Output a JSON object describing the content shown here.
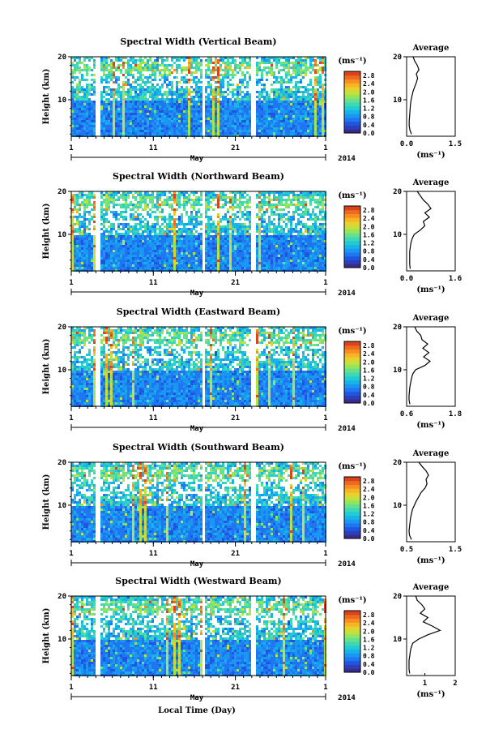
{
  "colors": {
    "colormap": [
      "#3a2a8c",
      "#2b3fb8",
      "#1f55e0",
      "#1f76f0",
      "#1a97f2",
      "#18b4e8",
      "#22cbd4",
      "#3ed9b4",
      "#66e08c",
      "#95e45e",
      "#c4e03c",
      "#e6d22e",
      "#f6b426",
      "#f78e20",
      "#ee6a1e",
      "#d9441e"
    ],
    "line": "#000000"
  },
  "chart_data": [
    {
      "type": "heatmap",
      "title": "Spectral Width (Vertical Beam)",
      "ylabel": "Height (km)",
      "ylim": [
        1.5,
        20
      ],
      "yticks": [
        "10",
        "20"
      ],
      "xticks": [
        "1",
        "11",
        "21",
        "1"
      ],
      "month_label": "May",
      "year_label": "2014",
      "colorbar": {
        "unit": "(ms⁻¹)",
        "ticks": [
          "0.0",
          "0.4",
          "0.8",
          "1.2",
          "1.6",
          "2.0",
          "2.4",
          "2.8"
        ],
        "range": [
          0,
          3.0
        ]
      },
      "average": {
        "title": "Average",
        "xlabel": "(ms⁻¹)",
        "xticks": [
          "0.0",
          "1.5"
        ],
        "xlim": [
          0,
          1.5
        ],
        "yticks": [
          "10",
          "20"
        ],
        "height_km": [
          2,
          3,
          4,
          5,
          6,
          7,
          8,
          9,
          10,
          11,
          12,
          13,
          14,
          15,
          16,
          17,
          18,
          19,
          20
        ],
        "values": [
          0.15,
          0.1,
          0.08,
          0.08,
          0.09,
          0.1,
          0.11,
          0.12,
          0.14,
          0.17,
          0.2,
          0.25,
          0.3,
          0.34,
          0.3,
          0.38,
          0.33,
          0.25,
          0.2
        ]
      }
    },
    {
      "type": "heatmap",
      "title": "Spectral Width (Northward Beam)",
      "ylabel": "Height (km)",
      "ylim": [
        1.5,
        20
      ],
      "yticks": [
        "10",
        "20"
      ],
      "xticks": [
        "1",
        "11",
        "21",
        "1"
      ],
      "month_label": "May",
      "year_label": "2014",
      "colorbar": {
        "unit": "(ms⁻¹)",
        "ticks": [
          "0.0",
          "0.4",
          "0.8",
          "1.2",
          "1.6",
          "2.0",
          "2.4",
          "2.8"
        ],
        "range": [
          0,
          3.0
        ]
      },
      "average": {
        "title": "Average",
        "xlabel": "(ms⁻¹)",
        "xticks": [
          "0.0",
          "1.6"
        ],
        "xlim": [
          0,
          1.6
        ],
        "yticks": [
          "10",
          "20"
        ],
        "height_km": [
          2,
          3,
          4,
          5,
          6,
          7,
          8,
          9,
          10,
          11,
          12,
          13,
          14,
          15,
          16,
          17,
          18,
          19,
          20
        ],
        "values": [
          0.12,
          0.1,
          0.1,
          0.1,
          0.1,
          0.12,
          0.14,
          0.18,
          0.25,
          0.45,
          0.6,
          0.55,
          0.75,
          0.6,
          0.8,
          0.7,
          0.55,
          0.45,
          0.35
        ]
      }
    },
    {
      "type": "heatmap",
      "title": "Spectral Width (Eastward Beam)",
      "ylabel": "Height (km)",
      "ylim": [
        1.5,
        20
      ],
      "yticks": [
        "10",
        "20"
      ],
      "xticks": [
        "1",
        "11",
        "21",
        "1"
      ],
      "month_label": "May",
      "year_label": "2014",
      "colorbar": {
        "unit": "(ms⁻¹)",
        "ticks": [
          "0.0",
          "0.4",
          "0.8",
          "1.2",
          "1.6",
          "2.0",
          "2.4",
          "2.8"
        ],
        "range": [
          0,
          3.0
        ]
      },
      "average": {
        "title": "Average",
        "xlabel": "(ms⁻¹)",
        "xticks": [
          "0.6",
          "1.8"
        ],
        "xlim": [
          0.6,
          1.8
        ],
        "yticks": [
          "10",
          "20"
        ],
        "height_km": [
          2,
          3,
          4,
          5,
          6,
          7,
          8,
          9,
          10,
          11,
          12,
          13,
          14,
          15,
          16,
          17,
          18,
          19,
          20
        ],
        "values": [
          0.68,
          0.66,
          0.66,
          0.67,
          0.68,
          0.7,
          0.72,
          0.75,
          0.82,
          1.05,
          1.18,
          1.02,
          1.15,
          1.0,
          1.12,
          0.98,
          0.95,
          0.85,
          0.8
        ]
      }
    },
    {
      "type": "heatmap",
      "title": "Spectral Width (Southward Beam)",
      "ylabel": "Height (km)",
      "ylim": [
        1.5,
        20
      ],
      "yticks": [
        "10",
        "20"
      ],
      "xticks": [
        "1",
        "11",
        "21",
        "1"
      ],
      "month_label": "May",
      "year_label": "2014",
      "colorbar": {
        "unit": "(ms⁻¹)",
        "ticks": [
          "0.0",
          "0.4",
          "0.8",
          "1.2",
          "1.6",
          "2.0",
          "2.4",
          "2.8"
        ],
        "range": [
          0,
          3.0
        ]
      },
      "average": {
        "title": "Average",
        "xlabel": "(ms⁻¹)",
        "xticks": [
          "0.5",
          "1.5"
        ],
        "xlim": [
          0.5,
          1.5
        ],
        "yticks": [
          "10",
          "20"
        ],
        "height_km": [
          2,
          3,
          4,
          5,
          6,
          7,
          8,
          9,
          10,
          11,
          12,
          13,
          14,
          15,
          16,
          17,
          18,
          19,
          20
        ],
        "values": [
          0.6,
          0.56,
          0.55,
          0.56,
          0.57,
          0.58,
          0.6,
          0.62,
          0.66,
          0.7,
          0.75,
          0.8,
          0.88,
          0.92,
          0.9,
          0.95,
          0.9,
          0.82,
          0.75
        ]
      }
    },
    {
      "type": "heatmap",
      "title": "Spectral Width (Westward Beam)",
      "ylabel": "Height (km)",
      "ylim": [
        1.5,
        20
      ],
      "yticks": [
        "10",
        "20"
      ],
      "xticks": [
        "1",
        "11",
        "21",
        "1"
      ],
      "month_label": "May",
      "year_label": "2014",
      "x_axis_title": "Local Time (Day)",
      "colorbar": {
        "unit": "(ms⁻¹)",
        "ticks": [
          "0.0",
          "0.4",
          "0.8",
          "1.2",
          "1.6",
          "2.0",
          "2.4",
          "2.8"
        ],
        "range": [
          0,
          3.0
        ]
      },
      "average": {
        "title": "Average",
        "xlabel": "(ms⁻¹)",
        "xticks": [
          "1",
          "2"
        ],
        "xlim": [
          0.4,
          2.0
        ],
        "yticks": [
          "10",
          "20"
        ],
        "height_km": [
          2,
          3,
          4,
          5,
          6,
          7,
          8,
          9,
          10,
          11,
          12,
          13,
          14,
          15,
          16,
          17,
          18,
          19,
          20
        ],
        "values": [
          0.5,
          0.48,
          0.48,
          0.48,
          0.5,
          0.52,
          0.55,
          0.6,
          0.8,
          1.1,
          1.5,
          1.25,
          0.95,
          1.1,
          0.85,
          1.0,
          0.9,
          0.75,
          0.7
        ]
      }
    }
  ]
}
